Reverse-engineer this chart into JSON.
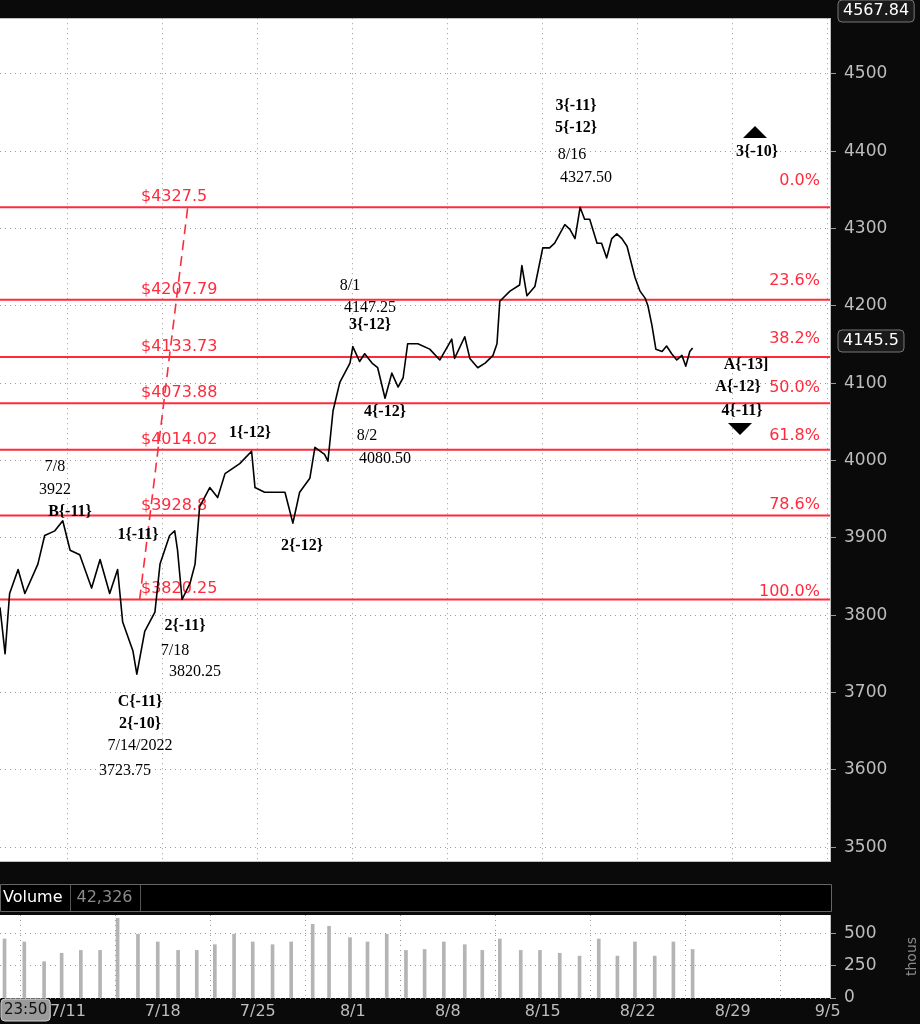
{
  "chart_data": [
    {
      "type": "line",
      "marker": "none",
      "line_style": "solid",
      "grid": true,
      "legend": false,
      "tick_labels": "y",
      "xlim": [
        "2022-07-06T00:00",
        "2022-09-05T04:00"
      ],
      "xticks": [
        {
          "value": "2022-07-11",
          "label": null
        },
        {
          "value": "2022-07-18",
          "label": null
        },
        {
          "value": "2022-07-25",
          "label": null
        },
        {
          "value": "2022-08-01",
          "label": null
        },
        {
          "value": "2022-08-08",
          "label": null
        },
        {
          "value": "2022-08-15",
          "label": null
        },
        {
          "value": "2022-08-22",
          "label": null
        },
        {
          "value": "2022-08-29",
          "label": null
        },
        {
          "value": "2022-09-05",
          "label": null
        }
      ],
      "ylim": [
        3481,
        4572
      ],
      "yticks": [
        3500,
        3600,
        3700,
        3800,
        3900,
        4000,
        4100,
        4200,
        4300,
        4400,
        4500
      ],
      "series": [
        {
          "type": "line",
          "color": "#000000",
          "x": [
            "2022-07-06T00:00",
            "2022-07-06T09:00",
            "2022-07-06T17:00",
            "2022-07-07T08:00",
            "2022-07-07T20:00",
            "2022-07-08T19:00",
            "2022-07-09T07:00",
            "2022-07-10T01:00",
            "2022-07-10T15:00",
            "2022-07-11T04:00",
            "2022-07-11T21:00",
            "2022-07-12T18:00",
            "2022-07-13T09:00",
            "2022-07-14T02:00",
            "2022-07-14T16:00",
            "2022-07-15T01:00",
            "2022-07-15T19:00",
            "2022-07-16T02:00",
            "2022-07-16T16:00",
            "2022-07-17T10:00",
            "2022-07-17T19:00",
            "2022-07-18T12:00",
            "2022-07-18T21:00",
            "2022-07-19T02:00",
            "2022-07-19T10:00",
            "2022-07-20T00:00",
            "2022-07-20T09:00",
            "2022-07-20T17:00",
            "2022-07-21T11:00",
            "2022-07-22T01:00",
            "2022-07-22T14:00",
            "2022-07-23T16:00",
            "2022-07-24T13:00",
            "2022-07-24T19:00",
            "2022-07-25T12:00",
            "2022-07-26T06:00",
            "2022-07-27T00:00",
            "2022-07-27T14:00",
            "2022-07-28T02:00",
            "2022-07-28T20:00",
            "2022-07-29T05:00",
            "2022-07-29T22:00",
            "2022-07-30T04:00",
            "2022-07-30T13:00",
            "2022-07-31T01:00",
            "2022-07-31T19:00",
            "2022-08-01T00:00",
            "2022-08-01T12:00",
            "2022-08-01T21:00",
            "2022-08-02T10:00",
            "2022-08-02T20:00",
            "2022-08-03T09:00",
            "2022-08-03T21:00",
            "2022-08-04T08:00",
            "2022-08-04T17:00",
            "2022-08-05T01:00",
            "2022-08-05T19:00",
            "2022-08-06T16:00",
            "2022-08-07T10:00",
            "2022-08-08T00:00",
            "2022-08-08T07:00",
            "2022-08-08T12:00",
            "2022-08-09T06:00",
            "2022-08-09T15:00",
            "2022-08-10T05:00",
            "2022-08-10T18:00",
            "2022-08-11T08:00",
            "2022-08-11T15:00",
            "2022-08-11T20:00",
            "2022-08-12T14:00",
            "2022-08-13T07:00",
            "2022-08-13T11:00",
            "2022-08-13T20:00",
            "2022-08-14T10:00",
            "2022-08-15T00:00",
            "2022-08-15T12:00",
            "2022-08-15T21:00",
            "2022-08-16T06:00",
            "2022-08-16T15:00",
            "2022-08-17T00:00",
            "2022-08-17T09:00",
            "2022-08-17T18:00",
            "2022-08-18T02:00",
            "2022-08-18T11:00",
            "2022-08-19T00:00",
            "2022-08-19T08:00",
            "2022-08-19T17:00",
            "2022-08-20T02:00",
            "2022-08-20T11:00",
            "2022-08-20T20:00",
            "2022-08-21T05:00",
            "2022-08-21T19:00",
            "2022-08-22T04:00",
            "2022-08-22T13:00",
            "2022-08-22T18:00",
            "2022-08-23T01:00",
            "2022-08-23T08:00",
            "2022-08-23T19:00",
            "2022-08-24T03:00",
            "2022-08-24T12:00",
            "2022-08-24T21:00",
            "2022-08-25T06:00",
            "2022-08-25T13:00",
            "2022-08-25T20:00",
            "2022-08-26T01:00"
          ],
          "values": [
            3810,
            3750,
            3828,
            3859,
            3828,
            3866,
            3903,
            3909,
            3922,
            3884,
            3878,
            3835,
            3872,
            3828,
            3859,
            3791,
            3754,
            3723.75,
            3779,
            3804,
            3866,
            3903,
            3909,
            3884,
            3820.25,
            3841,
            3866,
            3940,
            3965,
            3952,
            3983,
            3996,
            4012,
            3965,
            3959,
            3959,
            3959,
            3919,
            3959,
            3977,
            4017,
            4008,
            3999,
            4064,
            4101,
            4126,
            4147.25,
            4128,
            4138,
            4126,
            4120,
            4080.5,
            4113,
            4095,
            4107,
            4151,
            4151,
            4144,
            4130,
            4148,
            4157,
            4132,
            4160,
            4132,
            4120,
            4126,
            4136,
            4151,
            4206,
            4219,
            4227,
            4252,
            4213,
            4225,
            4275,
            4275,
            4281,
            4293,
            4305,
            4299,
            4287,
            4327.5,
            4312,
            4312,
            4281,
            4281,
            4262,
            4287,
            4293,
            4287,
            4277,
            4237,
            4219,
            4210,
            4200,
            4175,
            4144,
            4141,
            4148,
            4138,
            4130,
            4136,
            4122,
            4141,
            4145.5
          ]
        },
        {
          "type": "line",
          "color": "#ff2b3d",
          "line_style": "dashed",
          "x": [
            "2022-07-16T07:00",
            "2022-07-19T20:00"
          ],
          "values": [
            3820.25,
            4327.5
          ]
        }
      ],
      "ref_lines": [
        {
          "axis": "y",
          "value": 4327.5,
          "label": "$4327.5",
          "color": "#ff2b3d"
        },
        {
          "axis": "y",
          "value": 4207.79,
          "label": "$4207.79",
          "color": "#ff2b3d"
        },
        {
          "axis": "y",
          "value": 4133.73,
          "label": "$4133.73",
          "color": "#ff2b3d"
        },
        {
          "axis": "y",
          "value": 4073.88,
          "label": "$4073.88",
          "color": "#ff2b3d"
        },
        {
          "axis": "y",
          "value": 4014.02,
          "label": "$4014.02",
          "color": "#ff2b3d"
        },
        {
          "axis": "y",
          "value": 3928.8,
          "label": "$3928.8",
          "color": "#ff2b3d"
        },
        {
          "axis": "y",
          "value": 3820.25,
          "label": "$3820.25",
          "color": "#ff2b3d"
        }
      ],
      "annotations": [
        "0.0%",
        "23.6%",
        "38.2%",
        "50.0%",
        "61.8%",
        "78.6%",
        "100.0%",
        "7/8",
        "3922",
        "B{-11}",
        "1{-11}",
        "2{-11}",
        "7/18",
        "3820.25",
        "C{-11}",
        "2{-10}",
        "7/14/2022",
        "3723.75",
        "1{-12}",
        "2{-12}",
        "8/1",
        "4147.25",
        "3{-12}",
        "4{-12}",
        "8/2",
        "4080.50",
        "3{-11}",
        "5{-12}",
        "8/16",
        "4327.50",
        "3{-10}",
        "A{-13]",
        "A{-12}",
        "4{-11}",
        "4567.84",
        "4145.5"
      ]
    },
    {
      "type": "bar",
      "title": "Volume",
      "subtitle": "42,326",
      "ylabel": "thous",
      "color": "#b4b4b4",
      "grid": true,
      "legend": false,
      "xlim": [
        "2022-07-06T00:00",
        "2022-09-05T04:00"
      ],
      "xticks": [
        {
          "value": "2022-07-11",
          "label": "7/11"
        },
        {
          "value": "2022-07-18",
          "label": "7/18"
        },
        {
          "value": "2022-07-25",
          "label": "7/25"
        },
        {
          "value": "2022-08-01",
          "label": "8/1"
        },
        {
          "value": "2022-08-08",
          "label": "8/8"
        },
        {
          "value": "2022-08-15",
          "label": "8/15"
        },
        {
          "value": "2022-08-22",
          "label": "8/22"
        },
        {
          "value": "2022-08-29",
          "label": "8/29"
        },
        {
          "value": "2022-09-05",
          "label": "9/5"
        }
      ],
      "ylim": [
        0,
        640
      ],
      "yticks": [
        0,
        250,
        500
      ],
      "x": [
        "2022-07-06T08:00",
        "2022-07-07T19:00",
        "2022-07-09T06:00",
        "2022-07-10T13:00",
        "2022-07-11T23:00",
        "2022-07-13T09:00",
        "2022-07-14T16:00",
        "2022-07-16T04:00",
        "2022-07-17T15:00",
        "2022-07-19T03:00",
        "2022-07-20T12:00",
        "2022-07-21T20:00",
        "2022-07-23T06:00",
        "2022-07-24T15:00",
        "2022-07-26T02:00",
        "2022-07-27T11:00",
        "2022-07-29T01:00",
        "2022-07-30T06:00",
        "2022-07-31T19:00",
        "2022-08-02T02:00",
        "2022-08-03T12:00",
        "2022-08-04T22:00",
        "2022-08-06T07:00",
        "2022-08-07T17:00",
        "2022-08-09T06:00",
        "2022-08-10T13:00",
        "2022-08-11T20:00",
        "2022-08-13T09:00",
        "2022-08-14T19:00",
        "2022-08-16T06:00",
        "2022-08-17T17:00",
        "2022-08-19T03:00",
        "2022-08-20T12:00",
        "2022-08-21T19:00",
        "2022-08-23T06:00",
        "2022-08-24T15:00",
        "2022-08-26T01:00"
      ],
      "values": [
        455,
        432,
        280,
        345,
        367,
        367,
        614,
        492,
        432,
        367,
        367,
        411,
        492,
        432,
        411,
        432,
        568,
        553,
        465,
        432,
        492,
        367,
        374,
        432,
        411,
        367,
        455,
        367,
        367,
        345,
        323,
        455,
        323,
        432,
        323,
        432,
        374
      ],
      "annotations": [
        "23:50"
      ]
    }
  ]
}
